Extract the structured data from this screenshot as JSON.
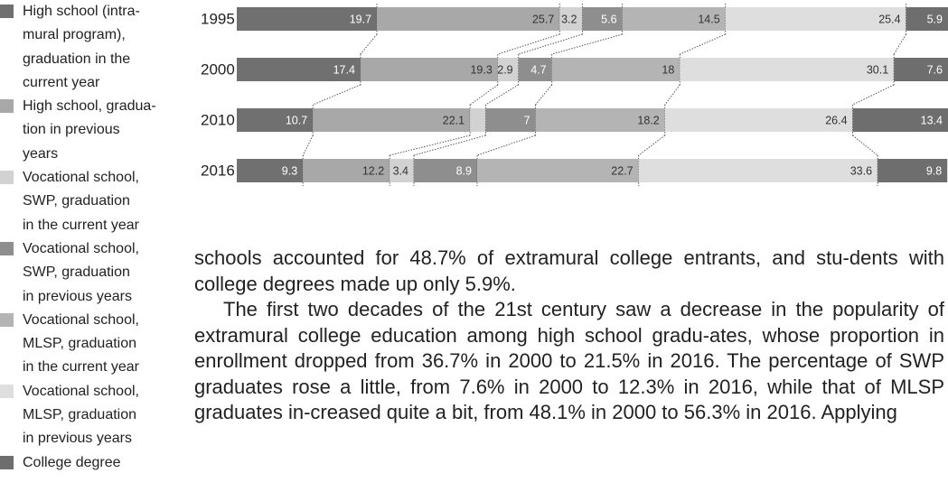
{
  "chart_data": {
    "type": "bar",
    "orientation": "horizontal",
    "stacked": true,
    "categories": [
      "1995",
      "2000",
      "2010",
      "2016"
    ],
    "xlim": [
      0,
      100
    ],
    "series": [
      {
        "name": "High school (intra-\nmural program),\ngraduation in the\ncurrent year",
        "color": "#707070",
        "values": [
          19.7,
          17.4,
          10.7,
          9.3
        ]
      },
      {
        "name": "High school, gradua-\ntion in previous\nyears",
        "color": "#a8a8a8",
        "values": [
          25.7,
          19.3,
          22.1,
          12.2
        ]
      },
      {
        "name": "Vocational school,\nSWP, graduation\nin the current year",
        "color": "#d2d2d2",
        "values": [
          3.2,
          2.9,
          2.2,
          3.4
        ],
        "value_labels": [
          "3.2",
          "2.9",
          null,
          "3.4"
        ]
      },
      {
        "name": "Vocational school,\nSWP, graduation\nin previous years",
        "color": "#8e8e8e",
        "values": [
          5.6,
          4.7,
          7,
          8.9
        ]
      },
      {
        "name": "Vocational school,\nMLSP, graduation\nin the current year",
        "color": "#b4b4b4",
        "values": [
          14.5,
          18,
          18.2,
          22.7
        ]
      },
      {
        "name": "Vocational school,\nMLSP, graduation\nin previous years",
        "color": "#dedede",
        "values": [
          25.4,
          30.1,
          26.4,
          33.6
        ]
      },
      {
        "name": "College degree",
        "color": "#6e6e6e",
        "values": [
          5.9,
          7.6,
          13.4,
          9.8
        ]
      }
    ]
  },
  "body_text": [
    "schools accounted for 48.7% of extramural college entrants, and stu-dents with college degrees made up only 5.9%.",
    "The first two decades of the 21st century saw a decrease in the popularity of extramural college education among high school gradu-ates, whose proportion in enrollment dropped from 36.7% in 2000 to 21.5% in 2016. The percentage of SWP graduates rose a little, from 7.6% in 2000 to 12.3% in 2016, while that of MLSP graduates in-creased quite a bit, from 48.1% in 2000 to 56.3% in 2016. Applying"
  ]
}
